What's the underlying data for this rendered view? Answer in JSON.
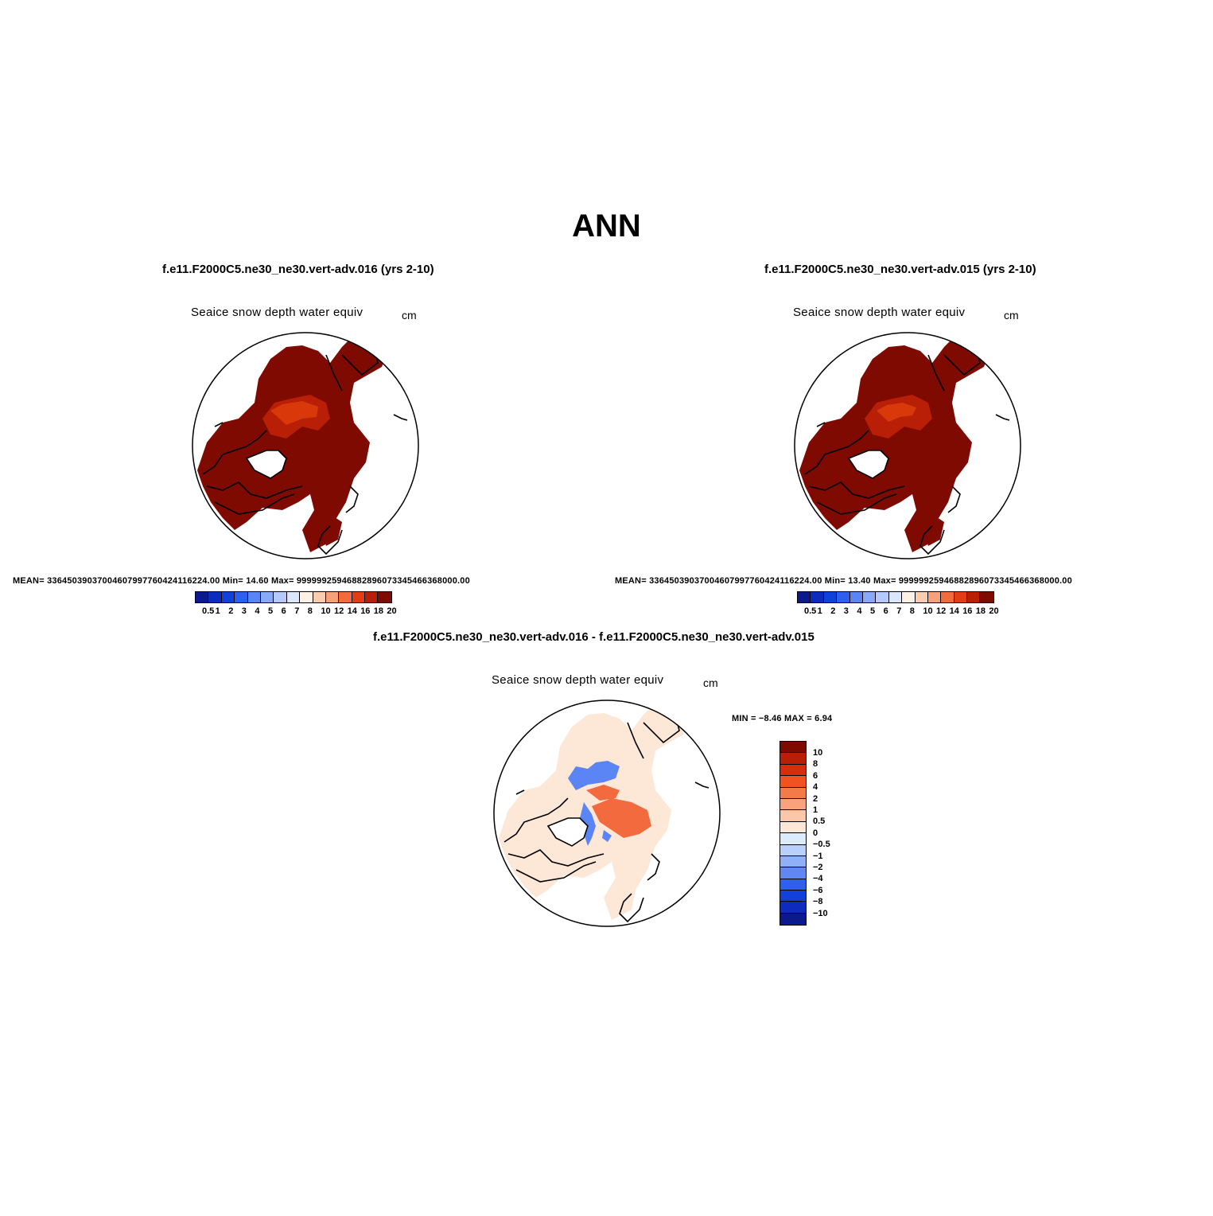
{
  "figure": {
    "season": "ANN"
  },
  "panels": [
    {
      "case_title": "f.e11.F2000C5.ne30_ne30.vert-adv.016 (yrs 2-10)",
      "variable": "Seaice snow depth water equiv",
      "units": "cm",
      "stats": "MEAN= 336450390370046079977604241162 24.00  Min=  14.60  Max= 999999259468828960733454663680 00.00",
      "mean": "MEAN= 336450390370046079977604241162 24.00",
      "mean_exact": "MEAN= 336450390370046079977604241 16224.00",
      "stats_text": "MEAN= 33645039037004607997760424116224.00   Min=   14.60   Max= 9999992594688289607334546636800 0.00"
    }
  ],
  "panel_a": {
    "case_title": "f.e11.F2000C5.ne30_ne30.vert-adv.016 (yrs 2-10)",
    "variable": "Seaice snow depth water equiv",
    "units": "cm",
    "stats": "MEAN= 33645039037004607997760424116224.00   Min=   14.60   Max= 99999925946882896073345466368000.00"
  },
  "panel_b": {
    "case_title": "f.e11.F2000C5.ne30_ne30.vert-adv.015 (yrs 2-10)",
    "variable": "Seaice snow depth water equiv",
    "units": "cm",
    "stats": "MEAN= 33645039037004607997760424116224.00   Min=   13.40   Max= 99999925946882896073345466368000.00"
  },
  "panel_diff": {
    "case_title": "f.e11.F2000C5.ne30_ne30.vert-adv.016 - f.e11.F2000C5.ne30_ne30.vert-adv.015",
    "variable": "Seaice snow depth water equiv",
    "units": "cm",
    "minmax": "MIN =   −8.46  MAX =     6.94"
  },
  "abs_colorbar": {
    "ticks": [
      "0.5",
      "1",
      "2",
      "3",
      "4",
      "5",
      "6",
      "7",
      "8",
      "10",
      "12",
      "14",
      "16",
      "18",
      "20"
    ],
    "colors": [
      "#0a1a8c",
      "#0d2bbd",
      "#1240db",
      "#2f5ff0",
      "#5b85f5",
      "#8aa9f7",
      "#b5c9fa",
      "#dbe6fb",
      "#fdf0e4",
      "#fbcdb0",
      "#f7a07c",
      "#f26a3e",
      "#e23d16",
      "#b81f06",
      "#7e0a02"
    ]
  },
  "diff_colorbar": {
    "ticks": [
      "10",
      "8",
      "6",
      "4",
      "2",
      "1",
      "0.5",
      "0",
      "−0.5",
      "−1",
      "−2",
      "−4",
      "−6",
      "−8",
      "−10"
    ],
    "colors": [
      "#7e0a02",
      "#b81f06",
      "#d82d0c",
      "#f0531f",
      "#f57a4a",
      "#f9a27c",
      "#fcc6a8",
      "#fde7d6",
      "#dcebfb",
      "#b8d0fa",
      "#8fb0f7",
      "#5f88f3",
      "#2f5ff0",
      "#1240db",
      "#0d2bbd",
      "#0a1a8c"
    ]
  },
  "colors": {
    "ice_dark": "#7e0a02",
    "ice_mid": "#b81f06",
    "ice_orange": "#d8380a",
    "diff_pale": "#fde7d6",
    "diff_orange": "#f26a3e",
    "diff_blue": "#5b85f5"
  }
}
